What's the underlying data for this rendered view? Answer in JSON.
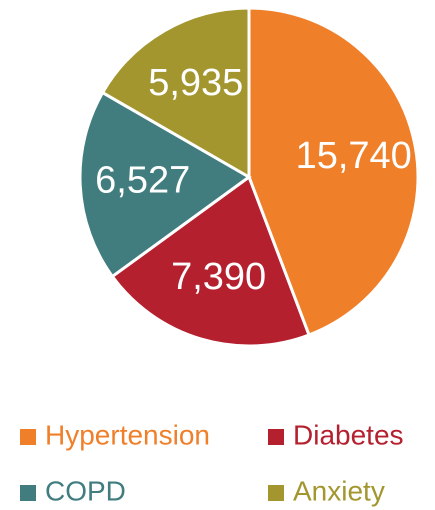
{
  "chart_data": {
    "type": "pie",
    "categories": [
      "Hypertension",
      "Diabetes",
      "COPD",
      "Anxiety"
    ],
    "values": [
      15740,
      7390,
      6527,
      5935
    ],
    "value_labels": [
      "15,740",
      "7,390",
      "6,527",
      "5,935"
    ],
    "colors": [
      "#f07f2a",
      "#b5202e",
      "#417d7e",
      "#a3962e"
    ],
    "legend": "bottom"
  }
}
